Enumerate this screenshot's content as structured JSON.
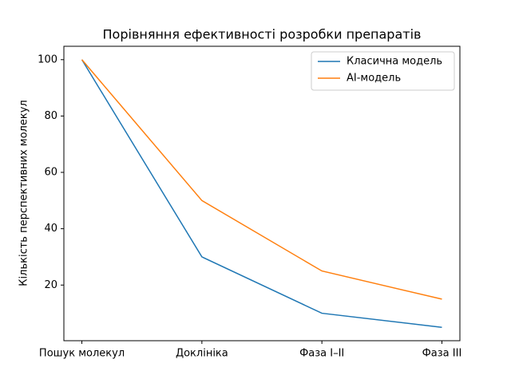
{
  "chart_data": {
    "type": "line",
    "title": "Порівняння ефективності розробки препаратів",
    "y_label": "Кількість перспективних молекул",
    "categories": [
      "Пошук молекул",
      "Доклініка",
      "Фаза I–II",
      "Фаза III"
    ],
    "series": [
      {
        "name": "Класична модель",
        "color": "#1f77b4",
        "values": [
          100,
          30,
          10,
          5
        ]
      },
      {
        "name": "AI-модель",
        "color": "#ff7f0e",
        "values": [
          100,
          50,
          25,
          15
        ]
      }
    ],
    "ylim": [
      0.25,
      104.75
    ],
    "yticks": [
      20,
      40,
      60,
      80,
      100
    ],
    "legend": "upper right"
  }
}
